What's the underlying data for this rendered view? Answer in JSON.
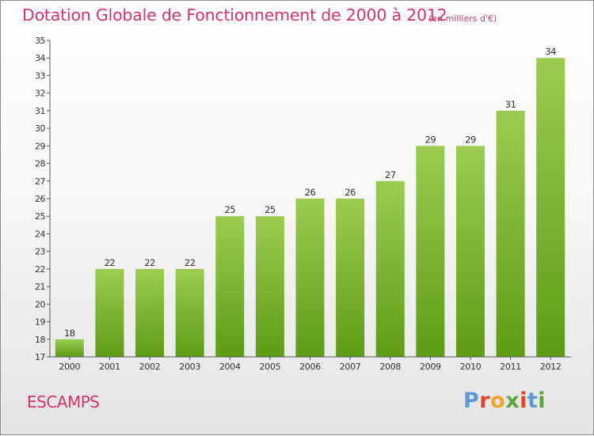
{
  "title": "Dotation Globale de Fonctionnement de 2000 à 2012",
  "unit_note": "(en milliers d'€)",
  "commune": "ESCAMPS",
  "logo": {
    "letters": [
      "P",
      "r",
      "o",
      "x",
      "i",
      "t",
      "i"
    ],
    "colors": [
      "#5b9bd5",
      "#e2432a",
      "#f4a623",
      "#57a839",
      "#e2432a",
      "#5b9bd5",
      "#57a839"
    ]
  },
  "colors": {
    "title": "#d5336d",
    "bar_top": "#9ccc4f",
    "bar_bottom": "#5e9c15",
    "axis": "#555555",
    "grid": "#c8c8c8"
  },
  "chart_data": {
    "type": "bar",
    "categories": [
      "2000",
      "2001",
      "2002",
      "2003",
      "2004",
      "2005",
      "2006",
      "2007",
      "2008",
      "2009",
      "2010",
      "2011",
      "2012"
    ],
    "values": [
      18,
      22,
      22,
      22,
      25,
      25,
      26,
      26,
      27,
      29,
      29,
      31,
      34
    ],
    "ylim": [
      17,
      35
    ],
    "yticks": [
      17,
      18,
      19,
      20,
      21,
      22,
      23,
      24,
      25,
      26,
      27,
      28,
      29,
      30,
      31,
      32,
      33,
      34,
      35
    ],
    "grid": false,
    "data_labels": true
  }
}
